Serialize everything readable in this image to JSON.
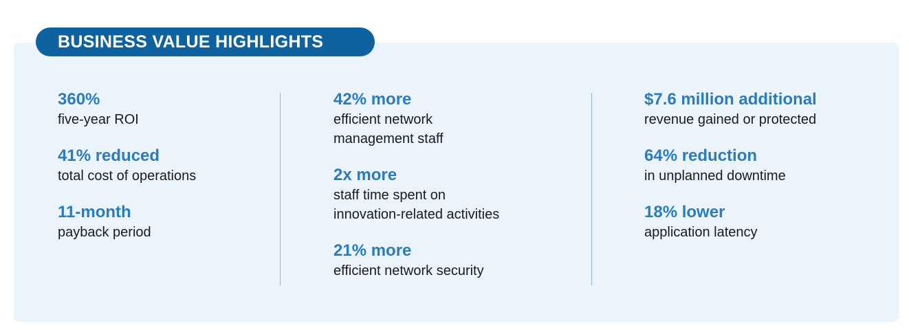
{
  "title": "BUSINESS VALUE HIGHLIGHTS",
  "columns": [
    {
      "items": [
        {
          "headline": "360%",
          "lines": [
            "five-year ROI"
          ]
        },
        {
          "headline": "41% reduced",
          "lines": [
            "total cost of operations"
          ]
        },
        {
          "headline": "11-month",
          "lines": [
            "payback period"
          ]
        }
      ]
    },
    {
      "items": [
        {
          "headline": "42% more",
          "lines": [
            "efficient network",
            "management staff"
          ]
        },
        {
          "headline": "2x more",
          "lines": [
            "staff time spent on",
            "innovation-related activities"
          ]
        },
        {
          "headline": "21% more",
          "lines": [
            "efficient network security"
          ]
        }
      ]
    },
    {
      "items": [
        {
          "headline": "$7.6 million additional",
          "lines": [
            "revenue gained or protected"
          ]
        },
        {
          "headline": "64% reduction",
          "lines": [
            "in unplanned downtime"
          ]
        },
        {
          "headline": "18% lower",
          "lines": [
            "application latency"
          ]
        }
      ]
    }
  ],
  "colors": {
    "accent": "#2b7bbf",
    "pill": "#0e62a0",
    "background": "#ebf4fb"
  }
}
